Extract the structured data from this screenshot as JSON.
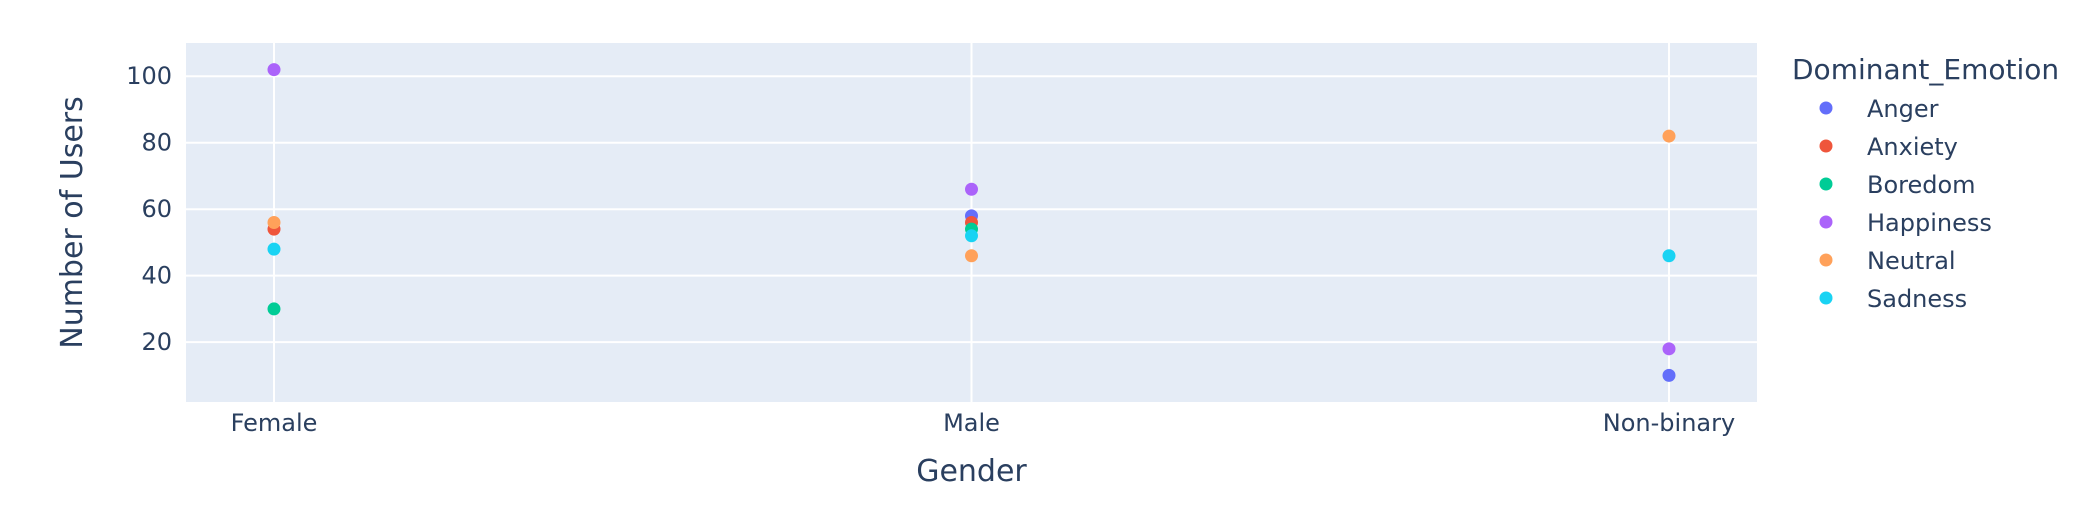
{
  "chart_data": {
    "type": "scatter",
    "xlabel": "Gender",
    "ylabel": "Number of Users",
    "categories": [
      "Female",
      "Male",
      "Non-binary"
    ],
    "y_ticks": [
      20,
      40,
      60,
      80,
      100
    ],
    "ylim": [
      2,
      110
    ],
    "grid": true,
    "legend": {
      "title": "Dominant_Emotion",
      "placement": "right"
    },
    "series": [
      {
        "name": "Anger",
        "color": "#636efa",
        "values": [
          null,
          58,
          10
        ]
      },
      {
        "name": "Anxiety",
        "color": "#ef553b",
        "values": [
          54,
          56,
          null
        ]
      },
      {
        "name": "Boredom",
        "color": "#00cc96",
        "values": [
          30,
          54,
          null
        ]
      },
      {
        "name": "Happiness",
        "color": "#ab63fa",
        "values": [
          102,
          66,
          18
        ]
      },
      {
        "name": "Neutral",
        "color": "#ffa15a",
        "values": [
          56,
          46,
          82
        ]
      },
      {
        "name": "Sadness",
        "color": "#19d3f3",
        "values": [
          48,
          52,
          46
        ]
      }
    ],
    "plot_background": "#e5ecf6",
    "gridline_color": "#ffffff"
  }
}
